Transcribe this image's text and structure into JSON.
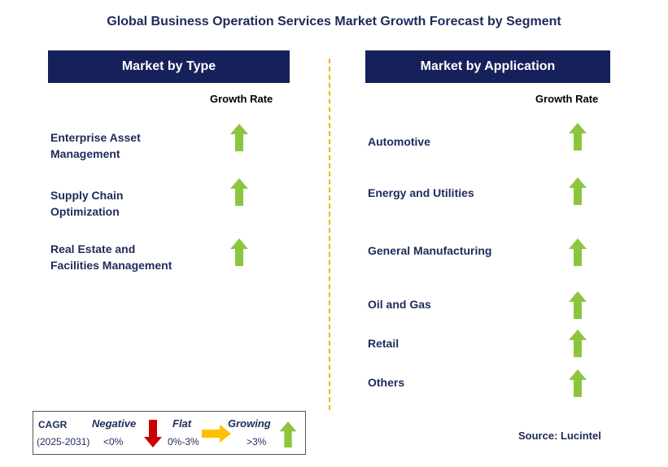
{
  "title": "Global Business Operation Services Market Growth Forecast by Segment",
  "left_panel": {
    "header": "Market by Type",
    "growth_rate_label": "Growth Rate",
    "items": [
      {
        "line1": "Enterprise Asset",
        "line2": "Management",
        "trend": "growing"
      },
      {
        "line1": "Supply Chain",
        "line2": "Optimization",
        "trend": "growing"
      },
      {
        "line1": "Real Estate and",
        "line2": "Facilities Management",
        "trend": "growing"
      }
    ]
  },
  "right_panel": {
    "header": "Market by Application",
    "growth_rate_label": "Growth Rate",
    "items": [
      {
        "label": "Automotive",
        "trend": "growing"
      },
      {
        "label": "Energy and Utilities",
        "trend": "growing"
      },
      {
        "label": "General Manufacturing",
        "trend": "growing"
      },
      {
        "label": "Oil and Gas",
        "trend": "growing"
      },
      {
        "label": "Retail",
        "trend": "growing"
      },
      {
        "label": "Others",
        "trend": "growing"
      }
    ]
  },
  "legend": {
    "cagr_label": "CAGR",
    "period": "(2025-2031)",
    "negative_label": "Negative",
    "negative_range": "<0%",
    "flat_label": "Flat",
    "flat_range": "0%-3%",
    "growing_label": "Growing",
    "growing_range": ">3%"
  },
  "source": "Source: Lucintel",
  "colors": {
    "header_bg": "#16205a",
    "text": "#1f2a5a",
    "arrow_up": "#8cc63f",
    "arrow_down": "#cc0000",
    "arrow_flat": "#ffc000",
    "divider": "#f0b400"
  },
  "icons": {
    "growing": "arrow-up-icon",
    "negative": "arrow-down-icon",
    "flat": "arrow-right-icon"
  }
}
